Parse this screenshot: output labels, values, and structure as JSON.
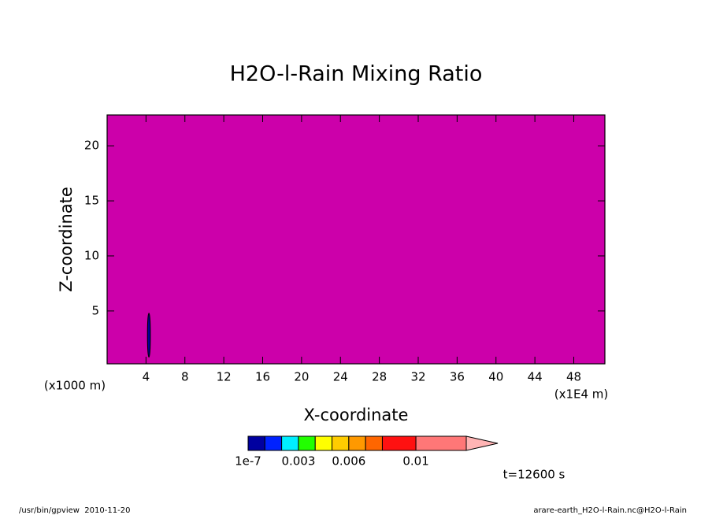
{
  "chart_data": {
    "type": "contour",
    "title": "H2O-l-Rain Mixing Ratio",
    "x_label": "X-coordinate",
    "y_label": "Z-coordinate",
    "y_unit_label": "(x1000 m)",
    "x_unit_label": "(x1E4 m)",
    "xlim": [
      0,
      51.2
    ],
    "ylim": [
      0.2,
      22.8
    ],
    "xticks": [
      4,
      8,
      12,
      16,
      20,
      24,
      28,
      32,
      36,
      40,
      44,
      48
    ],
    "yticks": [
      5,
      10,
      15,
      20
    ],
    "background": "#cc00aa",
    "region": {
      "x": 4.3,
      "y": [
        0.8,
        4.8
      ],
      "width": 0.3,
      "color": "#000099"
    },
    "colorbar": {
      "levels": [
        1e-07,
        0.001,
        0.002,
        0.003,
        0.004,
        0.005,
        0.006,
        0.007,
        0.008,
        0.01,
        0.013
      ],
      "colors": [
        "#0000a0",
        "#0022ff",
        "#00eeff",
        "#22ff00",
        "#ffff00",
        "#ffcc00",
        "#ff9900",
        "#ff6600",
        "#ff1111",
        "#ff7777"
      ],
      "extend_color": "#ffb4b4",
      "ticks": [
        1e-07,
        0.003,
        0.006,
        0.01
      ]
    },
    "annotation": "t=12600 s"
  },
  "footer": {
    "left": "/usr/bin/gpview  2010-11-20",
    "right": "arare-earth_H2O-l-Rain.nc@H2O-l-Rain"
  }
}
